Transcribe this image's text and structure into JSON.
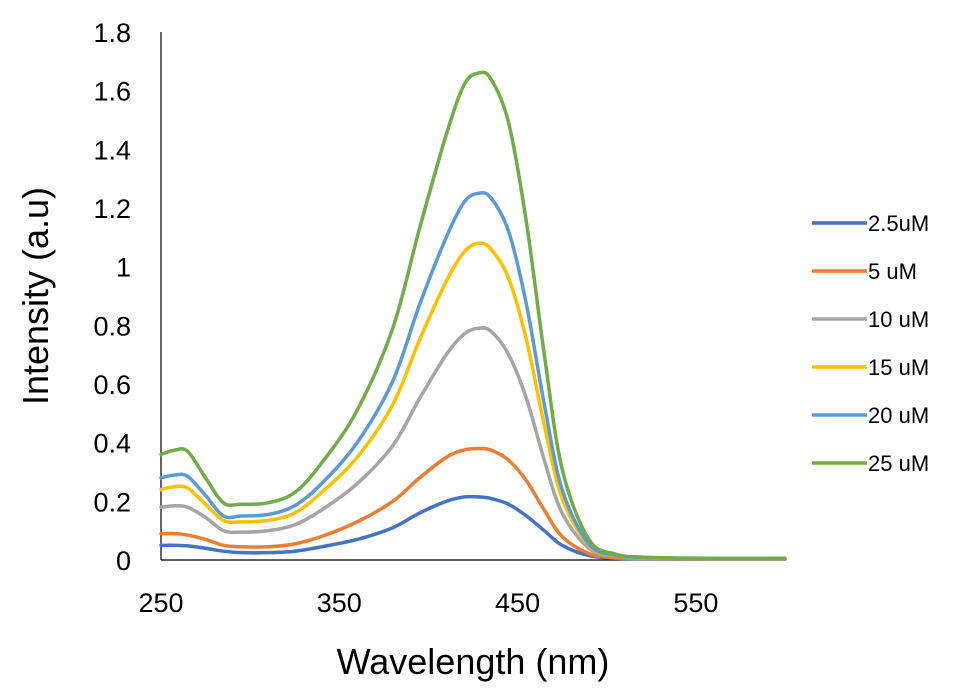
{
  "chart_data": {
    "type": "line",
    "title": "",
    "xlabel": "Wavelength (nm)",
    "ylabel": "Intensity (a.u)",
    "xlim": [
      250,
      600
    ],
    "ylim": [
      0,
      1.8
    ],
    "x_ticks": [
      250,
      350,
      450,
      550
    ],
    "y_ticks": [
      0,
      0.2,
      0.4,
      0.6,
      0.8,
      1,
      1.2,
      1.4,
      1.6,
      1.8
    ],
    "y_tick_labels": [
      "0",
      "0.2",
      "0.4",
      "0.6",
      "0.8",
      "1",
      "1.2",
      "1.4",
      "1.6",
      "1.8"
    ],
    "grid": false,
    "legend_position": "right",
    "x": [
      250,
      258,
      265,
      275,
      285,
      295,
      310,
      325,
      340,
      360,
      380,
      395,
      410,
      420,
      428,
      435,
      445,
      455,
      465,
      475,
      490,
      505,
      520,
      540,
      560,
      580,
      600
    ],
    "series": [
      {
        "name": "2.5uM",
        "color": "#4472C4",
        "values": [
          0.05,
          0.05,
          0.048,
          0.04,
          0.03,
          0.025,
          0.025,
          0.03,
          0.045,
          0.07,
          0.11,
          0.16,
          0.2,
          0.215,
          0.215,
          0.21,
          0.19,
          0.15,
          0.1,
          0.05,
          0.015,
          0.006,
          0.004,
          0.003,
          0.003,
          0.003,
          0.003
        ]
      },
      {
        "name": "5 uM",
        "color": "#ED7D31",
        "values": [
          0.09,
          0.09,
          0.085,
          0.07,
          0.05,
          0.045,
          0.045,
          0.055,
          0.08,
          0.13,
          0.2,
          0.28,
          0.35,
          0.375,
          0.38,
          0.375,
          0.34,
          0.27,
          0.17,
          0.08,
          0.022,
          0.008,
          0.005,
          0.004,
          0.003,
          0.003,
          0.003
        ]
      },
      {
        "name": "10 uM",
        "color": "#A5A5A5",
        "values": [
          0.18,
          0.185,
          0.18,
          0.145,
          0.1,
          0.095,
          0.1,
          0.12,
          0.17,
          0.26,
          0.39,
          0.55,
          0.7,
          0.77,
          0.79,
          0.78,
          0.7,
          0.55,
          0.34,
          0.16,
          0.04,
          0.012,
          0.007,
          0.005,
          0.004,
          0.004,
          0.004
        ]
      },
      {
        "name": "15 uM",
        "color": "#FFC000",
        "values": [
          0.24,
          0.25,
          0.245,
          0.19,
          0.135,
          0.13,
          0.135,
          0.16,
          0.23,
          0.35,
          0.53,
          0.75,
          0.95,
          1.05,
          1.08,
          1.06,
          0.96,
          0.75,
          0.46,
          0.21,
          0.05,
          0.015,
          0.008,
          0.006,
          0.005,
          0.005,
          0.005
        ]
      },
      {
        "name": "20 uM",
        "color": "#5B9BD5",
        "values": [
          0.28,
          0.29,
          0.285,
          0.22,
          0.15,
          0.15,
          0.155,
          0.185,
          0.26,
          0.4,
          0.61,
          0.87,
          1.1,
          1.22,
          1.25,
          1.235,
          1.12,
          0.87,
          0.53,
          0.24,
          0.055,
          0.016,
          0.009,
          0.006,
          0.005,
          0.005,
          0.005
        ]
      },
      {
        "name": "25 uM",
        "color": "#70AD47",
        "values": [
          0.36,
          0.375,
          0.37,
          0.28,
          0.195,
          0.19,
          0.195,
          0.23,
          0.33,
          0.51,
          0.79,
          1.13,
          1.45,
          1.62,
          1.66,
          1.64,
          1.49,
          1.15,
          0.7,
          0.31,
          0.07,
          0.02,
          0.01,
          0.007,
          0.006,
          0.006,
          0.006
        ]
      }
    ]
  }
}
